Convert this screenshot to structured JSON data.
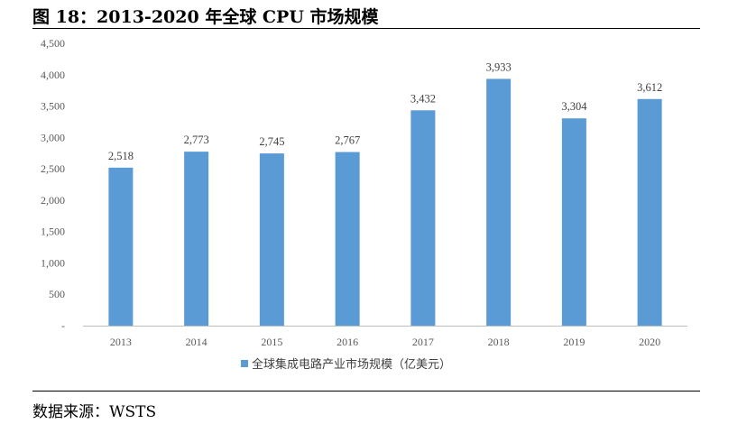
{
  "figure": {
    "title": "图 18：2013-2020 年全球 CPU 市场规模",
    "source": "数据来源：WSTS"
  },
  "chart_data": {
    "type": "bar",
    "categories": [
      "2013",
      "2014",
      "2015",
      "2016",
      "2017",
      "2018",
      "2019",
      "2020"
    ],
    "series": [
      {
        "name": "全球集成电路产业市场规模（亿美元）",
        "values": [
          2518,
          2773,
          2745,
          2767,
          3432,
          3933,
          3304,
          3612
        ],
        "color": "#5B9BD5"
      }
    ],
    "data_labels": [
      "2,518",
      "2,773",
      "2,745",
      "2,767",
      "3,432",
      "3,933",
      "3,304",
      "3,612"
    ],
    "y_tick_values": [
      0,
      500,
      1000,
      1500,
      2000,
      2500,
      3000,
      3500,
      4000,
      4500
    ],
    "y_tick_labels": [
      "-",
      "500",
      "1,000",
      "1,500",
      "2,000",
      "2,500",
      "3,000",
      "3,500",
      "4,000",
      "4,500"
    ],
    "ylim": [
      0,
      4500
    ],
    "xlabel": "",
    "ylabel": "",
    "grid": false,
    "legend_position": "bottom-center"
  }
}
